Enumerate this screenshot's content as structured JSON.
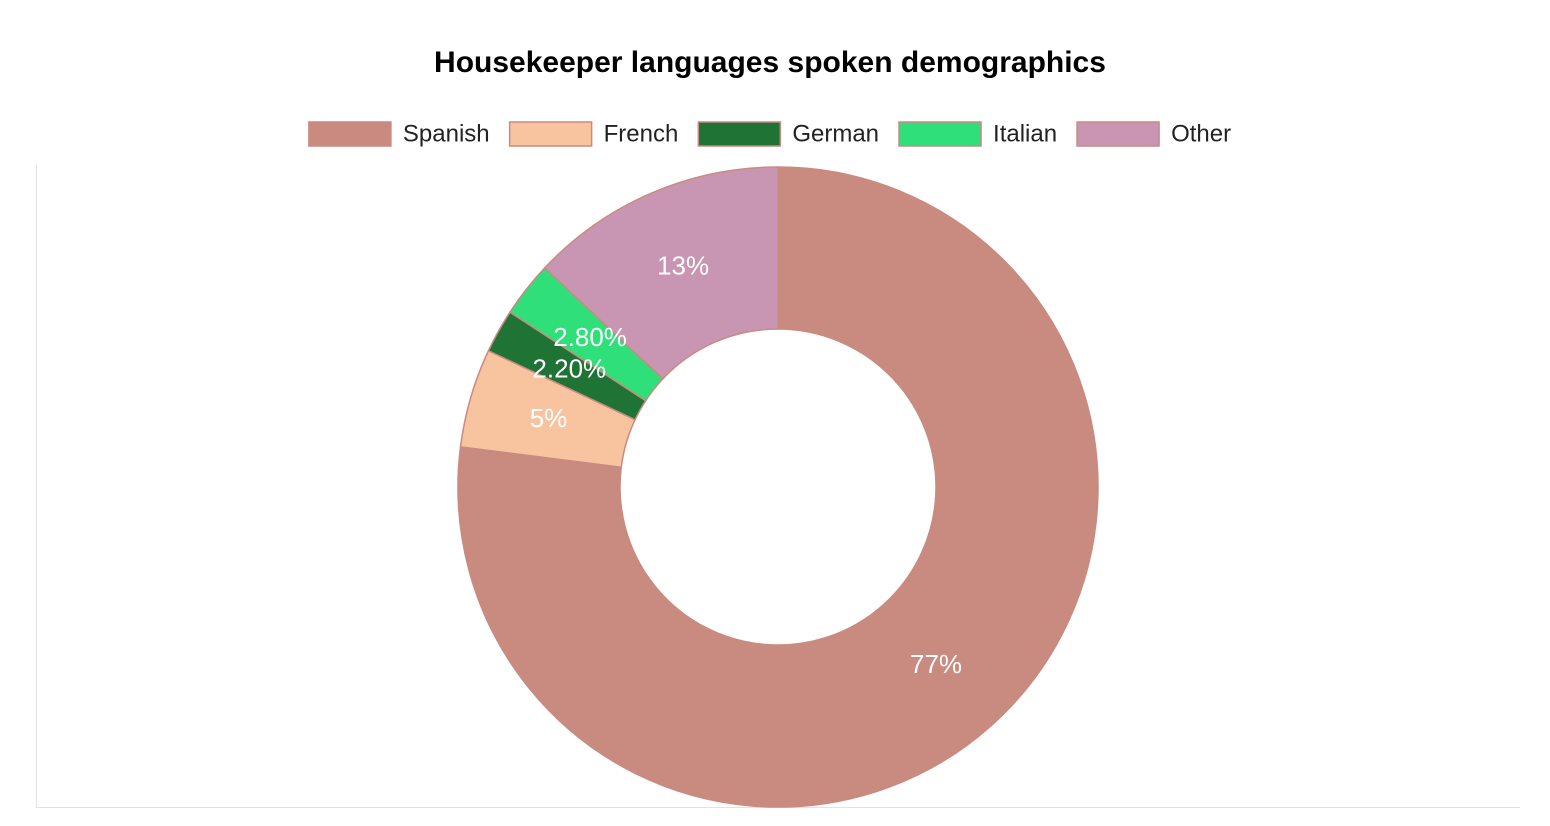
{
  "chart_data": {
    "type": "pie",
    "variant": "doughnut",
    "title": "Housekeeper languages spoken demographics",
    "legend_position": "top",
    "labels": [
      "Spanish",
      "French",
      "German",
      "Italian",
      "Other"
    ],
    "values": [
      77,
      5,
      2.2,
      2.8,
      13
    ],
    "value_labels": [
      "77%",
      "5%",
      "2.20%",
      "2.80%",
      "13%"
    ],
    "colors": [
      "#c98a80",
      "#f8c4a0",
      "#1f7335",
      "#2fe07a",
      "#c896b2"
    ],
    "border_color": "#c98a80"
  }
}
